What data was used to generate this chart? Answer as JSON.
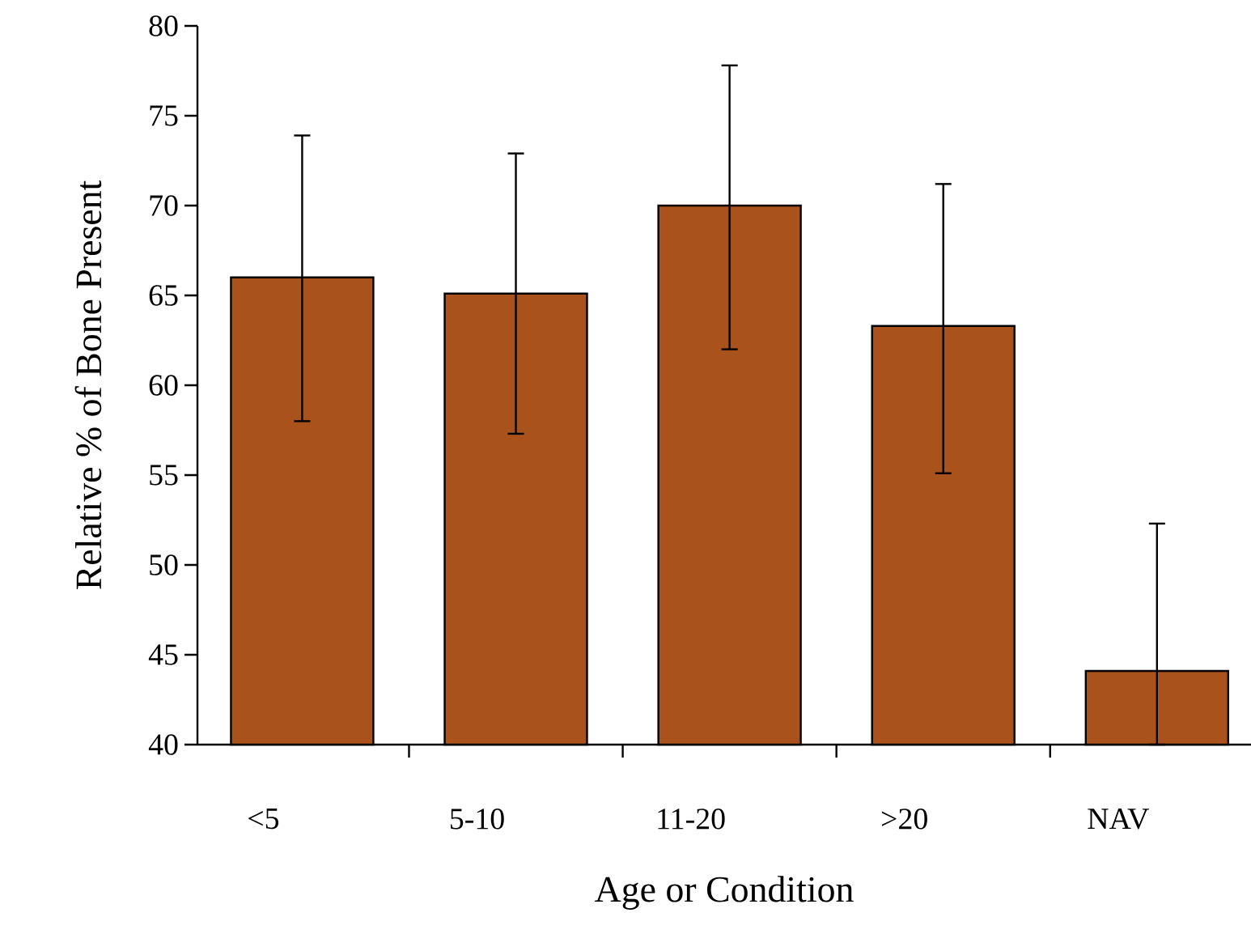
{
  "chart_data": {
    "type": "bar",
    "xlabel": "Age or Condition",
    "ylabel": "Relative % of Bone Present",
    "categories": [
      "<5",
      "5-10",
      "11-20",
      ">20",
      "NAV"
    ],
    "values": [
      66,
      65.1,
      70,
      63.3,
      44.1
    ],
    "errors": [
      [
        58,
        73.9
      ],
      [
        57.3,
        72.9
      ],
      [
        62,
        77.8
      ],
      [
        55.1,
        71.2
      ],
      [
        40,
        52.3
      ]
    ],
    "color": "#a9521b",
    "ylim": [
      40,
      80
    ],
    "yticks": [
      40,
      45,
      50,
      55,
      60,
      65,
      70,
      75,
      80
    ]
  }
}
